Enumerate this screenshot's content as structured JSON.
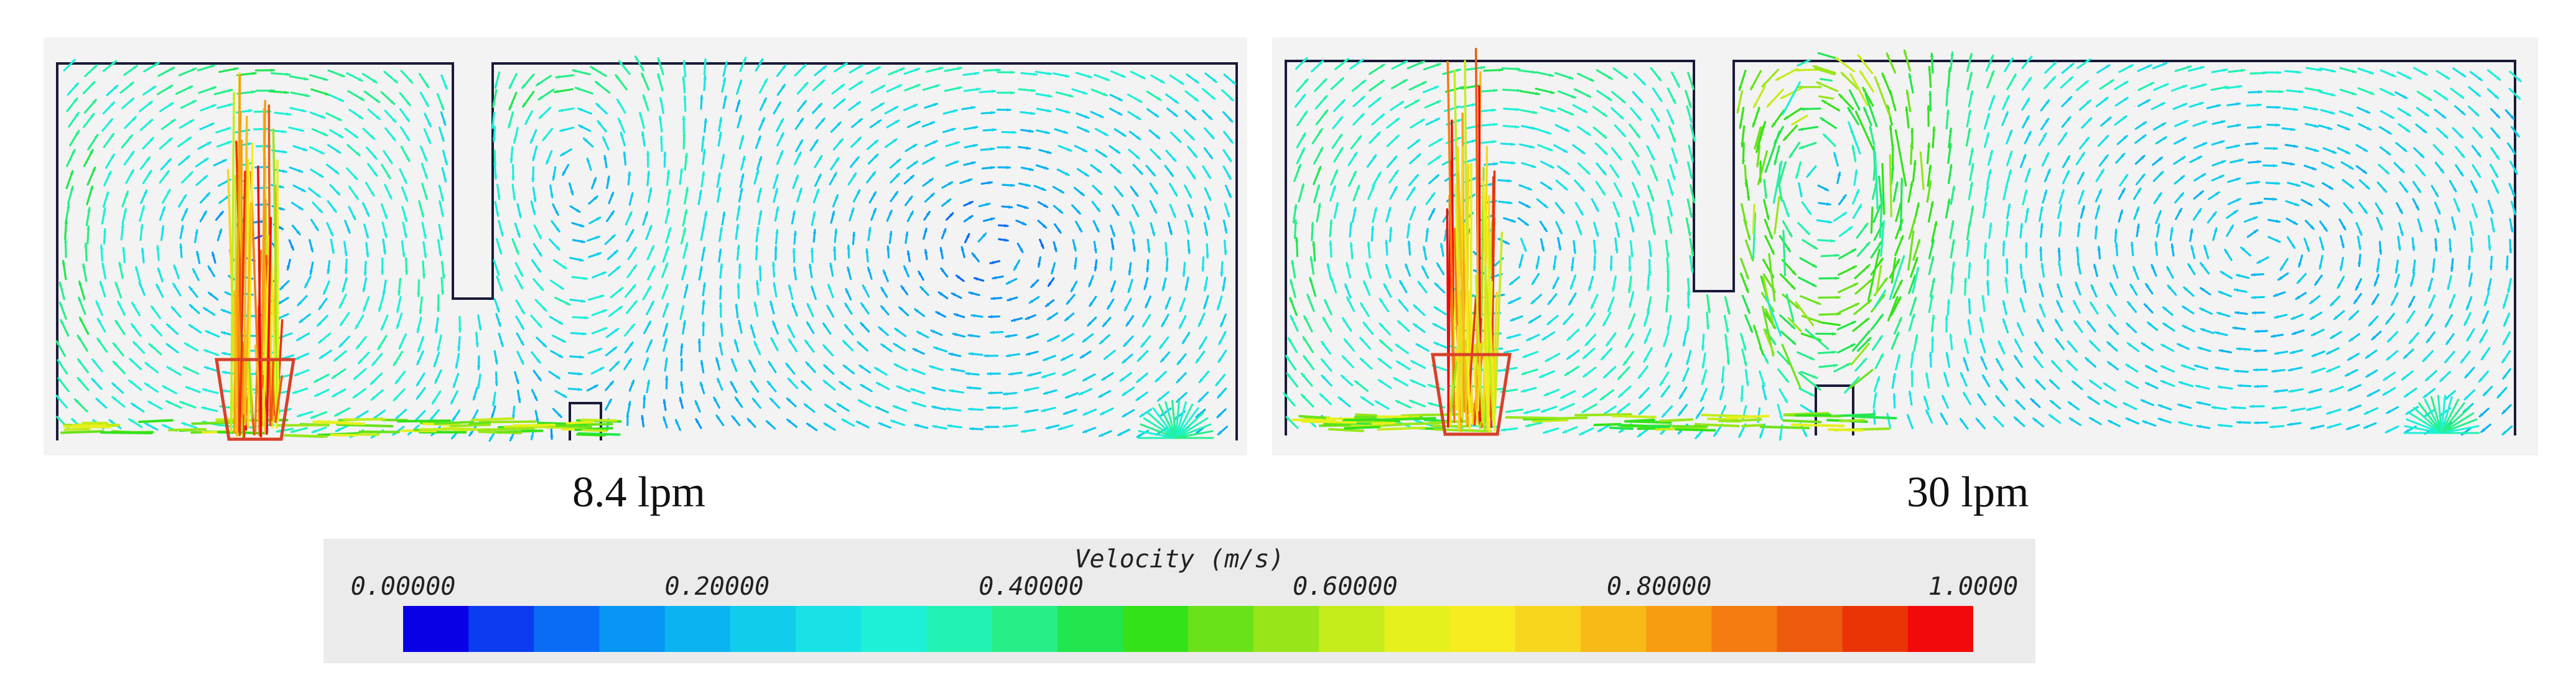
{
  "panels": [
    {
      "flow_label": "8.4 lpm"
    },
    {
      "flow_label": "30 lpm"
    }
  ],
  "colorbar": {
    "title": "Velocity (m/s)",
    "ticks": [
      {
        "value": 0.0,
        "label": "0.00000"
      },
      {
        "value": 0.2,
        "label": "0.20000"
      },
      {
        "value": 0.4,
        "label": "0.40000"
      },
      {
        "value": 0.6,
        "label": "0.60000"
      },
      {
        "value": 0.8,
        "label": "0.80000"
      },
      {
        "value": 1.0,
        "label": "1.0000"
      }
    ],
    "range": [
      0,
      1
    ],
    "colors": [
      "#0a00e6",
      "#0b3cf0",
      "#0a6cf4",
      "#0896f4",
      "#0ab4f0",
      "#10cdec",
      "#18e2e6",
      "#1ef0d8",
      "#22f2b4",
      "#28ee88",
      "#22e650",
      "#34e21a",
      "#6ae21a",
      "#98e61a",
      "#c4ec1a",
      "#e6f01c",
      "#f6ec20",
      "#f8d61e",
      "#f8ba16",
      "#f89c12",
      "#f47c10",
      "#ee5a0e",
      "#ea3408",
      "#f20a0a"
    ]
  }
}
